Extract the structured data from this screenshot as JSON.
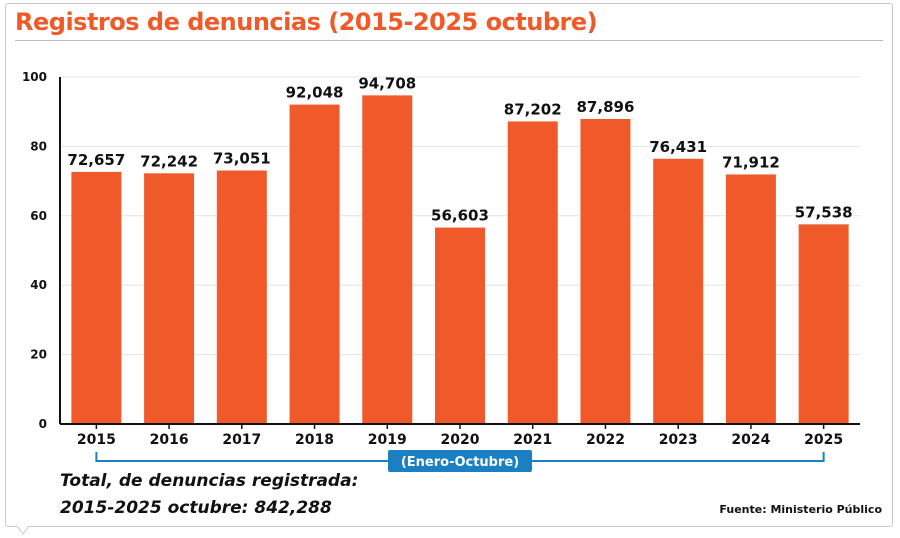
{
  "title": "Registros de denuncias (2015-2025 octubre)",
  "range_label": "(Enero-Octubre)",
  "total_line1": "Total, de denuncias registrada:",
  "total_line2": "2015-2025 octubre: 842,288",
  "source": "Fuente: Ministerio Público",
  "colors": {
    "bar": "#f05a2b",
    "title": "#ef5a28",
    "bracket": "#1b7fc4"
  },
  "chart_data": {
    "type": "bar",
    "title": "Registros de denuncias (2015-2025 octubre)",
    "categories": [
      "2015",
      "2016",
      "2017",
      "2018",
      "2019",
      "2020",
      "2021",
      "2022",
      "2023",
      "2024",
      "2025"
    ],
    "values": [
      72.657,
      72.242,
      73.051,
      92.048,
      94.708,
      56.603,
      87.202,
      87.896,
      76.431,
      71.912,
      57.538
    ],
    "value_labels": [
      "72,657",
      "72,242",
      "73,051",
      "92,048",
      "94,708",
      "56,603",
      "87,202",
      "87,896",
      "76,431",
      "71,912",
      "57,538"
    ],
    "y_ticks": [
      "0",
      "20",
      "40",
      "60",
      "80",
      "100"
    ],
    "ylim": [
      0,
      100
    ],
    "xlabel": "",
    "ylabel": "",
    "grid": true,
    "legend": "none"
  }
}
